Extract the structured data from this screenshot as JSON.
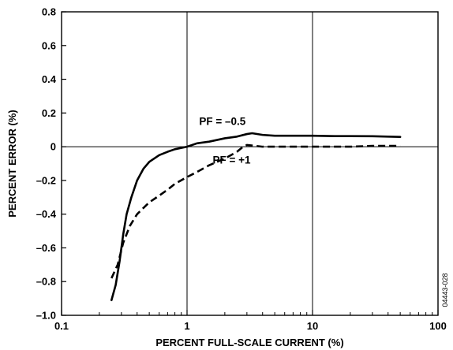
{
  "chart_data": {
    "type": "line",
    "title": "",
    "xlabel": "PERCENT FULL-SCALE CURRENT (%)",
    "ylabel": "PERCENT ERROR (%)",
    "xscale": "log",
    "xlim": [
      0.1,
      100
    ],
    "ylim": [
      -1.0,
      0.8
    ],
    "grid": "vertical lines at decades and horizontal line at 0",
    "xticks": [
      {
        "value": 0.1,
        "label": "0.1"
      },
      {
        "value": 1,
        "label": "1"
      },
      {
        "value": 10,
        "label": "10"
      },
      {
        "value": 100,
        "label": "100"
      }
    ],
    "yticks": [
      {
        "value": 0.8,
        "label": "0.8"
      },
      {
        "value": 0.6,
        "label": "0.6"
      },
      {
        "value": 0.4,
        "label": "0.4"
      },
      {
        "value": 0.2,
        "label": "0.2"
      },
      {
        "value": 0,
        "label": "0"
      },
      {
        "value": -0.2,
        "label": "–0.2"
      },
      {
        "value": -0.4,
        "label": "–0.4"
      },
      {
        "value": -0.6,
        "label": "–0.6"
      },
      {
        "value": -0.8,
        "label": "–0.8"
      },
      {
        "value": -1.0,
        "label": "–1.0"
      }
    ],
    "series": [
      {
        "label": "PF = –0.5",
        "style": "solid",
        "x": [
          0.25,
          0.27,
          0.29,
          0.31,
          0.33,
          0.36,
          0.4,
          0.45,
          0.5,
          0.6,
          0.7,
          0.8,
          1.0,
          1.2,
          1.5,
          2.0,
          2.5,
          3.0,
          3.3,
          4.0,
          5.0,
          7.0,
          10.0,
          15.0,
          20.0,
          30.0,
          40.0,
          50.0
        ],
        "y": [
          -0.91,
          -0.82,
          -0.68,
          -0.52,
          -0.4,
          -0.3,
          -0.2,
          -0.13,
          -0.09,
          -0.05,
          -0.03,
          -0.015,
          0.0,
          0.02,
          0.03,
          0.05,
          0.06,
          0.075,
          0.08,
          0.07,
          0.065,
          0.065,
          0.065,
          0.063,
          0.063,
          0.062,
          0.06,
          0.058
        ]
      },
      {
        "label": "PF = +1",
        "style": "dashed",
        "x": [
          0.25,
          0.28,
          0.31,
          0.35,
          0.4,
          0.5,
          0.6,
          0.7,
          0.8,
          1.0,
          1.2,
          1.5,
          2.0,
          2.5,
          2.8,
          3.0,
          3.5,
          4.0,
          5.0,
          7.0,
          10.0,
          15.0,
          20.0,
          30.0,
          50.0
        ],
        "y": [
          -0.78,
          -0.7,
          -0.57,
          -0.47,
          -0.4,
          -0.33,
          -0.29,
          -0.255,
          -0.22,
          -0.18,
          -0.15,
          -0.11,
          -0.07,
          -0.03,
          0.0,
          0.01,
          0.005,
          0.0,
          0.0,
          0.0,
          0.0,
          0.0,
          0.0,
          0.005,
          0.005
        ]
      }
    ],
    "annotations": [
      {
        "text": "PF = –0.5",
        "x": 1.25,
        "y": 0.13
      },
      {
        "text": "PF = +1",
        "x": 1.6,
        "y": -0.1
      }
    ],
    "figure_code": "04443-028"
  }
}
